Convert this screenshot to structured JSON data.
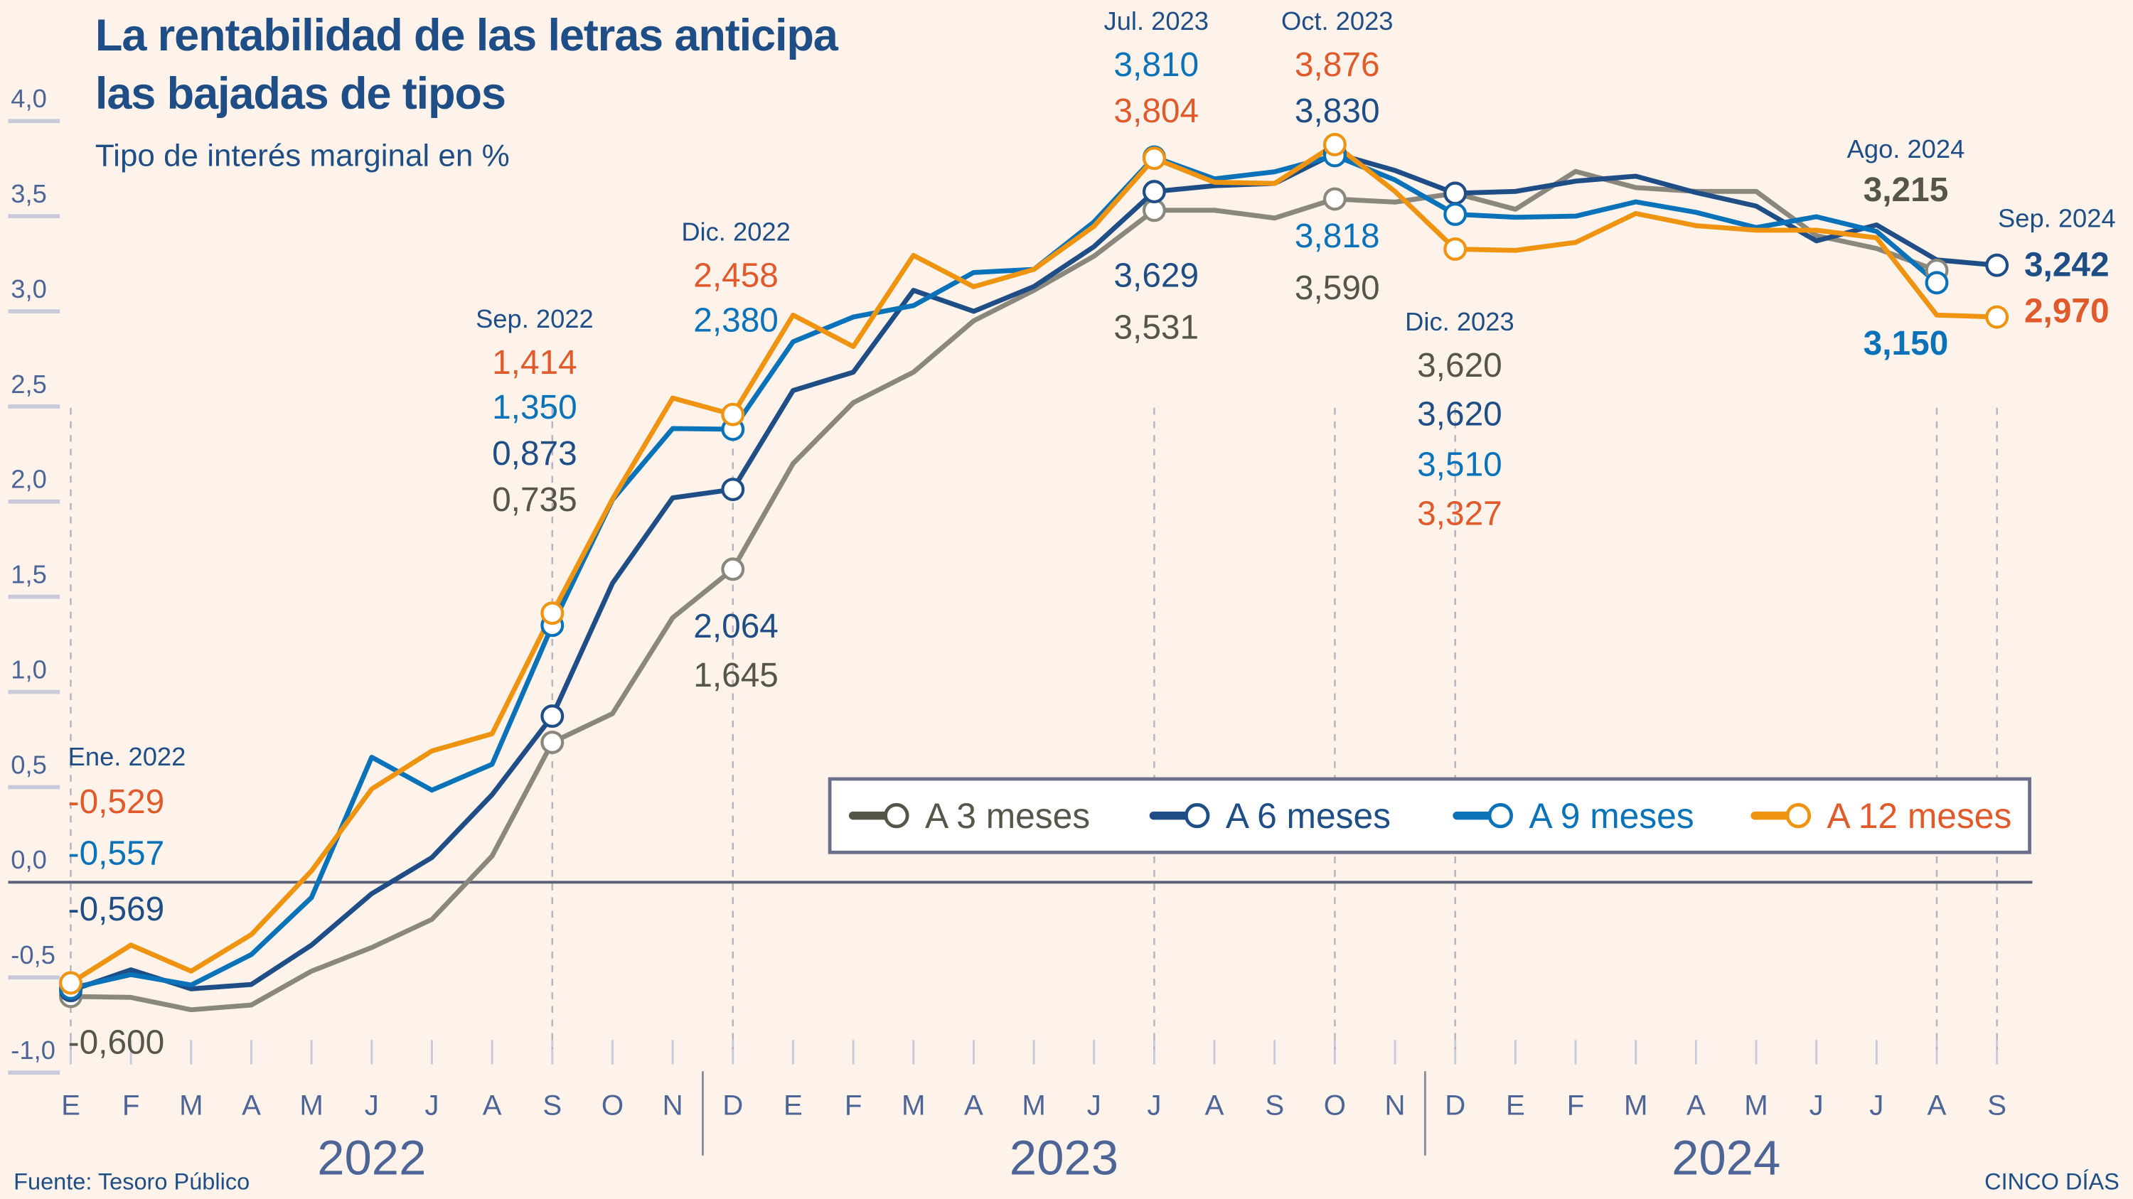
{
  "title_lines": [
    "La rentabilidad de las letras anticipa",
    "las bajadas de tipos"
  ],
  "subtitle": "Tipo de interés marginal en %",
  "source": "Fuente: Tesoro Público",
  "brand": "CINCO DÍAS",
  "colors": {
    "background": "#fdf3ea",
    "3m": "#8a877d",
    "3m_text": "#55554a",
    "6m": "#1f4e86",
    "9m": "#0a72b8",
    "12m": "#ef9410",
    "12m_text": "#e05a2b",
    "axis_text": "#4d6496",
    "zero_line": "#5a5f7a"
  },
  "chart_data": {
    "type": "line",
    "title": "La rentabilidad de las letras anticipa las bajadas de tipos",
    "subtitle": "Tipo de interés marginal en %",
    "xlabel": "",
    "ylabel": "%",
    "ylim": [
      -1.0,
      4.0
    ],
    "yticks": [
      4.0,
      3.5,
      3.0,
      2.5,
      2.0,
      1.5,
      1.0,
      0.5,
      0.0,
      -0.5,
      -1.0
    ],
    "ytick_labels": [
      "4,0",
      "3,5",
      "3,0",
      "2,5",
      "2,0",
      "1,5",
      "1,0",
      "0,5",
      "0,0",
      "-0,5",
      "-1,0"
    ],
    "grid": false,
    "legend_position": "bottom-right",
    "x": [
      "E",
      "F",
      "M",
      "A",
      "M",
      "J",
      "J",
      "A",
      "S",
      "O",
      "N",
      "D",
      "E",
      "F",
      "M",
      "A",
      "M",
      "J",
      "J",
      "A",
      "S",
      "O",
      "N",
      "D",
      "E",
      "F",
      "M",
      "A",
      "M",
      "J",
      "J",
      "A",
      "S"
    ],
    "years": [
      {
        "label": "2022",
        "start": 0,
        "end": 10
      },
      {
        "label": "2023",
        "start": 11,
        "end": 22
      },
      {
        "label": "2024",
        "start": 23,
        "end": 32
      }
    ],
    "series": [
      {
        "key": "3m",
        "name": "A 3 meses",
        "values": [
          -0.6,
          -0.605,
          -0.67,
          -0.645,
          -0.467,
          -0.343,
          -0.195,
          0.138,
          0.735,
          0.886,
          1.39,
          1.645,
          2.2,
          2.52,
          2.68,
          2.95,
          3.11,
          3.29,
          3.531,
          3.531,
          3.49,
          3.59,
          3.574,
          3.62,
          3.536,
          3.735,
          3.65,
          3.63,
          3.63,
          3.398,
          3.33,
          3.215,
          null
        ]
      },
      {
        "key": "6m",
        "name": "A 6 meses",
        "values": [
          -0.569,
          -0.46,
          -0.56,
          -0.537,
          -0.33,
          -0.06,
          0.13,
          0.46,
          0.873,
          1.571,
          2.02,
          2.064,
          2.584,
          2.68,
          3.11,
          3.0,
          3.13,
          3.34,
          3.629,
          3.66,
          3.672,
          3.83,
          3.74,
          3.62,
          3.63,
          3.684,
          3.71,
          3.624,
          3.553,
          3.37,
          3.454,
          3.27,
          3.242
        ]
      },
      {
        "key": "9m",
        "name": "A 9 meses",
        "values": [
          -0.557,
          -0.485,
          -0.54,
          -0.38,
          -0.08,
          0.657,
          0.484,
          0.62,
          1.35,
          2.01,
          2.384,
          2.38,
          2.84,
          2.97,
          3.03,
          3.204,
          3.22,
          3.47,
          3.81,
          3.696,
          3.733,
          3.818,
          3.69,
          3.51,
          3.494,
          3.5,
          3.575,
          3.52,
          3.44,
          3.497,
          3.42,
          3.15,
          null
        ]
      },
      {
        "key": "12m",
        "name": "A 12 meses",
        "values": [
          -0.529,
          -0.33,
          -0.467,
          -0.275,
          0.06,
          0.49,
          0.69,
          0.78,
          1.414,
          2.013,
          2.544,
          2.458,
          2.98,
          2.815,
          3.294,
          3.129,
          3.22,
          3.447,
          3.804,
          3.678,
          3.672,
          3.876,
          3.63,
          3.327,
          3.32,
          3.362,
          3.514,
          3.45,
          3.426,
          3.426,
          3.386,
          2.98,
          2.97
        ]
      }
    ],
    "annotations": [
      {
        "date": "Ene. 2022",
        "index": 0,
        "items": [
          {
            "series": "12m",
            "text": "-0,529"
          },
          {
            "series": "9m",
            "text": "-0,557"
          },
          {
            "series": "6m",
            "text": "-0,569"
          },
          {
            "series": "3m",
            "text": "-0,600"
          }
        ]
      },
      {
        "date": "Sep. 2022",
        "index": 8,
        "items": [
          {
            "series": "12m",
            "text": "1,414"
          },
          {
            "series": "9m",
            "text": "1,350"
          },
          {
            "series": "6m",
            "text": "0,873"
          },
          {
            "series": "3m",
            "text": "0,735"
          }
        ]
      },
      {
        "date": "Dic. 2022",
        "index": 11,
        "items": [
          {
            "series": "12m",
            "text": "2,458"
          },
          {
            "series": "9m",
            "text": "2,380"
          },
          {
            "series": "6m",
            "text": "2,064"
          },
          {
            "series": "3m",
            "text": "1,645"
          }
        ]
      },
      {
        "date": "Jul. 2023",
        "index": 18,
        "items": [
          {
            "series": "9m",
            "text": "3,810"
          },
          {
            "series": "12m",
            "text": "3,804"
          },
          {
            "series": "6m",
            "text": "3,629"
          },
          {
            "series": "3m",
            "text": "3,531"
          }
        ]
      },
      {
        "date": "Oct. 2023",
        "index": 21,
        "items": [
          {
            "series": "12m",
            "text": "3,876"
          },
          {
            "series": "6m",
            "text": "3,830"
          },
          {
            "series": "9m",
            "text": "3,818"
          },
          {
            "series": "3m",
            "text": "3,590"
          }
        ]
      },
      {
        "date": "Dic. 2023",
        "index": 23,
        "items": [
          {
            "series": "3m",
            "text": "3,620"
          },
          {
            "series": "6m",
            "text": "3,620"
          },
          {
            "series": "9m",
            "text": "3,510"
          },
          {
            "series": "12m",
            "text": "3,327"
          }
        ]
      },
      {
        "date": "Ago. 2024",
        "index": 31,
        "items": [
          {
            "series": "3m",
            "text": "3,215"
          },
          {
            "series": "9m",
            "text": "3,150"
          }
        ]
      },
      {
        "date": "Sep. 2024",
        "index": 32,
        "items": [
          {
            "series": "6m",
            "text": "3,242"
          },
          {
            "series": "12m",
            "text": "2,970"
          }
        ]
      }
    ]
  }
}
